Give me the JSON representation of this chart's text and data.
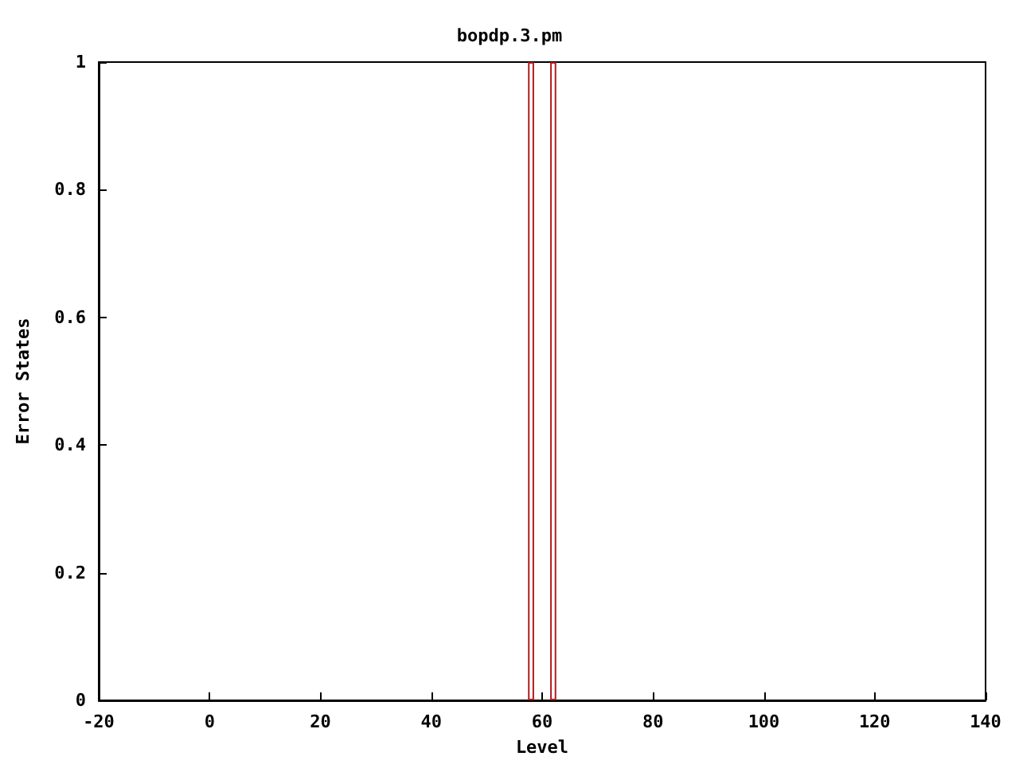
{
  "chart_data": {
    "type": "bar",
    "title": "bopdp.3.pm",
    "xlabel": "Level",
    "ylabel": "Error States",
    "x": [
      58,
      62
    ],
    "values": [
      1,
      1
    ],
    "color": "#b01c1c",
    "xlim": [
      -20,
      140
    ],
    "xticks": [
      -20,
      0,
      20,
      40,
      60,
      80,
      100,
      120,
      140
    ],
    "ylim": [
      0,
      1
    ],
    "yticks": [
      0,
      0.2,
      0.4,
      0.6,
      0.8,
      1
    ],
    "grid": false,
    "legend": false
  }
}
